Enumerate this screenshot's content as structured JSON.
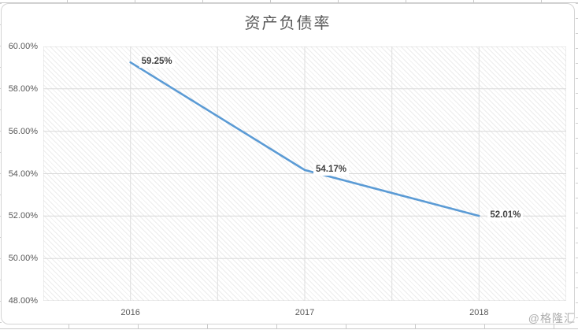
{
  "page": {
    "watermark": "@格隆汇"
  },
  "chart_data": {
    "type": "line",
    "title": "资产负债率",
    "categories": [
      "2016",
      "2017",
      "2018"
    ],
    "series": [
      {
        "name": "资产负债率",
        "values": [
          59.25,
          54.17,
          52.01
        ]
      }
    ],
    "data_labels": [
      "59.25%",
      "54.17%",
      "52.01%"
    ],
    "xlabel": "",
    "ylabel": "",
    "ylim": [
      48,
      60
    ],
    "y_tick_step": 2,
    "y_ticks": [
      "60.00%",
      "58.00%",
      "56.00%",
      "54.00%",
      "52.00%",
      "50.00%",
      "48.00%"
    ],
    "legend": "none",
    "grid": "major horizontal + vertical, light gray",
    "plot_background": "light diagonal hatch",
    "line_color": "#5B9BD5",
    "grid_color_h": "#d9d9d9",
    "grid_color_v": "#dedede",
    "label_color": "#3f3f3f",
    "axis_text_color": "#595959"
  }
}
